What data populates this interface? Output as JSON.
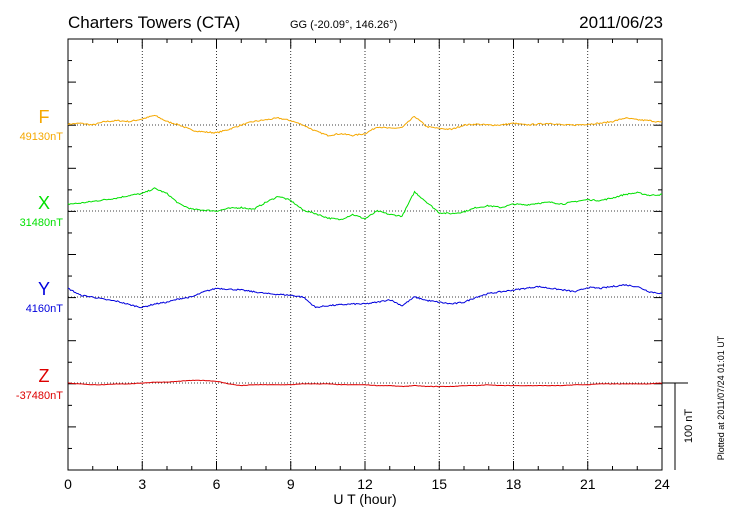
{
  "header": {
    "station": "Charters Towers (CTA)",
    "coords": "GG (-20.09°, 146.26°)",
    "date": "2011/06/23"
  },
  "footer": {
    "plotted": "Plotted at 2011/07/24 01:01 UT"
  },
  "colors": {
    "F": "#f5a800",
    "X": "#00e000",
    "Y": "#0000dd",
    "Z": "#dd0000",
    "axis": "#000000"
  },
  "chart_data": {
    "type": "line",
    "title": "Charters Towers (CTA)",
    "xlabel": "U T (hour)",
    "ylabel": "",
    "xlim": [
      0,
      24
    ],
    "xticks": [
      0,
      3,
      6,
      9,
      12,
      15,
      18,
      21,
      24
    ],
    "xtick_labels": [
      "0",
      "3",
      "6",
      "9",
      "12",
      "15",
      "18",
      "21",
      "24"
    ],
    "scale_bar": {
      "label": "100 nT",
      "value_nT": 100
    },
    "series": [
      {
        "name": "F",
        "baseline_label": "49130nT",
        "baseline_nT": 49130,
        "x": [
          0,
          0.5,
          1,
          1.5,
          2,
          2.5,
          3,
          3.5,
          4,
          4.5,
          5,
          5.5,
          6,
          6.5,
          7,
          7.5,
          8,
          8.5,
          9,
          9.5,
          10,
          10.5,
          11,
          11.5,
          12,
          12.5,
          13,
          13.5,
          14,
          14.5,
          15,
          15.5,
          16,
          16.5,
          17,
          17.5,
          18,
          18.5,
          19,
          19.5,
          20,
          20.5,
          21,
          21.5,
          22,
          22.5,
          23,
          23.5,
          24
        ],
        "values": [
          1,
          2,
          0,
          4,
          5,
          4,
          7,
          11,
          4,
          0,
          -6,
          -8,
          -9,
          -5,
          0,
          4,
          6,
          8,
          5,
          0,
          -7,
          -12,
          -10,
          -12,
          -10,
          -2,
          -4,
          -3,
          10,
          -2,
          -4,
          -5,
          0,
          1,
          0,
          0,
          2,
          0,
          1,
          2,
          0,
          0,
          1,
          2,
          4,
          8,
          6,
          5,
          3
        ]
      },
      {
        "name": "X",
        "baseline_label": "31480nT",
        "baseline_nT": 31480,
        "x": [
          0,
          0.5,
          1,
          1.5,
          2,
          2.5,
          3,
          3.5,
          4,
          4.5,
          5,
          5.5,
          6,
          6.5,
          7,
          7.5,
          8,
          8.5,
          9,
          9.5,
          10,
          10.5,
          11,
          11.5,
          12,
          12.5,
          13,
          13.5,
          14,
          14.5,
          15,
          15.5,
          16,
          16.5,
          17,
          17.5,
          18,
          18.5,
          19,
          19.5,
          20,
          20.5,
          21,
          21.5,
          22,
          22.5,
          23,
          23.5,
          24
        ],
        "values": [
          8,
          9,
          11,
          13,
          15,
          18,
          20,
          26,
          20,
          8,
          2,
          1,
          0,
          3,
          4,
          2,
          10,
          17,
          12,
          1,
          -3,
          -8,
          -10,
          -4,
          -9,
          0,
          -4,
          -6,
          22,
          10,
          -2,
          -3,
          -1,
          4,
          6,
          4,
          8,
          7,
          9,
          10,
          8,
          11,
          13,
          12,
          15,
          19,
          21,
          18,
          19
        ]
      },
      {
        "name": "Y",
        "baseline_label": "4160nT",
        "baseline_nT": 4160,
        "x": [
          0,
          0.5,
          1,
          1.5,
          2,
          2.5,
          3,
          3.5,
          4,
          4.5,
          5,
          5.5,
          6,
          6.5,
          7,
          7.5,
          8,
          8.5,
          9,
          9.5,
          10,
          10.5,
          11,
          11.5,
          12,
          12.5,
          13,
          13.5,
          14,
          14.5,
          15,
          15.5,
          16,
          16.5,
          17,
          17.5,
          18,
          18.5,
          19,
          19.5,
          20,
          20.5,
          21,
          21.5,
          22,
          22.5,
          23,
          23.5,
          24
        ],
        "values": [
          10,
          2,
          0,
          -3,
          -5,
          -9,
          -12,
          -8,
          -6,
          -2,
          0,
          6,
          10,
          9,
          8,
          6,
          4,
          3,
          2,
          0,
          -12,
          -10,
          -9,
          -8,
          -8,
          -6,
          -3,
          -10,
          0,
          -4,
          -6,
          -8,
          -6,
          0,
          4,
          6,
          8,
          10,
          12,
          10,
          8,
          6,
          11,
          10,
          12,
          14,
          12,
          6,
          4
        ]
      },
      {
        "name": "Z",
        "baseline_label": "-37480nT",
        "baseline_nT": -37480,
        "x": [
          0,
          0.5,
          1,
          1.5,
          2,
          2.5,
          3,
          3.5,
          4,
          4.5,
          5,
          5.5,
          6,
          6.5,
          7,
          7.5,
          8,
          8.5,
          9,
          9.5,
          10,
          10.5,
          11,
          11.5,
          12,
          12.5,
          13,
          13.5,
          14,
          14.5,
          15,
          15.5,
          16,
          16.5,
          17,
          17.5,
          18,
          18.5,
          19,
          19.5,
          20,
          20.5,
          21,
          21.5,
          22,
          22.5,
          23,
          23.5,
          24
        ],
        "values": [
          0,
          -1,
          -2,
          -2,
          -1,
          -1,
          0,
          1,
          1,
          2,
          3,
          3,
          2,
          -1,
          -3,
          -2,
          -2,
          -2,
          -2,
          -1,
          -1,
          -1,
          -2,
          -2,
          -2,
          -3,
          -3,
          -4,
          -3,
          -4,
          -4,
          -4,
          -3,
          -3,
          -2,
          -3,
          -3,
          -3,
          -3,
          -3,
          -3,
          -2,
          -2,
          -1,
          -1,
          -1,
          -1,
          -1,
          0
        ]
      }
    ]
  }
}
